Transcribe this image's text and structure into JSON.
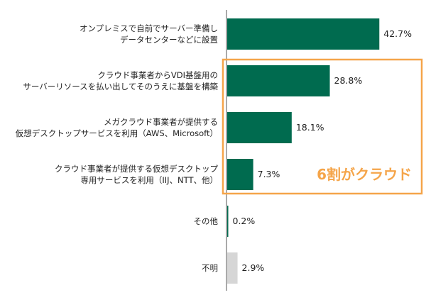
{
  "chart_data": {
    "type": "bar",
    "orientation": "horizontal",
    "categories": [
      [
        "オンプレミスで自前でサーバー準備し",
        "データセンターなどに設置"
      ],
      [
        "クラウド事業者からVDI基盤用の",
        "サーバーリソースを払い出してそのうえに基盤を構築"
      ],
      [
        "メガクラウド事業者が提供する",
        "仮想デスクトップサービスを利用（AWS、Microsoft）"
      ],
      [
        "クラウド事業者が提供する仮想デスクトップ",
        "専用サービスを利用（IIJ、NTT、他）"
      ],
      [
        "その他"
      ],
      [
        "不明"
      ]
    ],
    "values": [
      42.7,
      28.8,
      18.1,
      7.3,
      0.2,
      2.9
    ],
    "value_labels": [
      "42.7%",
      "28.8%",
      "18.1%",
      "7.3%",
      "0.2%",
      "2.9%"
    ],
    "bar_colors": [
      "#006b4f",
      "#006b4f",
      "#006b4f",
      "#006b4f",
      "#006b4f",
      "#d6d6d6"
    ],
    "xlim": [
      0,
      55
    ],
    "title": "",
    "xlabel": "",
    "ylabel": "",
    "grid": false,
    "legend": "none",
    "highlight": {
      "from_category": 1,
      "to_category": 3,
      "label": "6割がクラウド",
      "color": "#f5a54a"
    }
  }
}
